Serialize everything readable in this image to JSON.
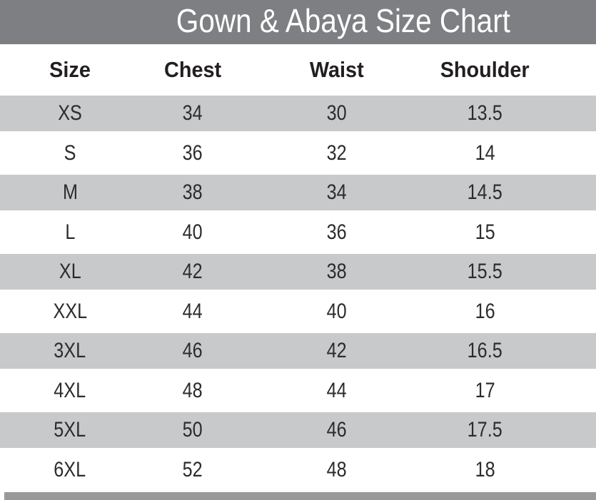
{
  "title_bar": {
    "title": "Gown & Abaya Size Chart"
  },
  "colors": {
    "title_bar_bg": "#7d7f82",
    "title_text": "#ffffff",
    "header_text": "#231f20",
    "row_stripe_bg": "#c8c9cb",
    "row_plain_bg": "#ffffff",
    "data_text": "#2c2c2e",
    "footer_bar_bg": "#97999b"
  },
  "chart_data": {
    "type": "table",
    "title": "Gown & Abaya Size Chart",
    "columns": [
      "Size",
      "Chest",
      "Waist",
      "Shoulder"
    ],
    "rows": [
      [
        "XS",
        "34",
        "30",
        "13.5"
      ],
      [
        "S",
        "36",
        "32",
        "14"
      ],
      [
        "M",
        "38",
        "34",
        "14.5"
      ],
      [
        "L",
        "40",
        "36",
        "15"
      ],
      [
        "XL",
        "42",
        "38",
        "15.5"
      ],
      [
        "XXL",
        "44",
        "40",
        "16"
      ],
      [
        "3XL",
        "46",
        "42",
        "16.5"
      ],
      [
        "4XL",
        "48",
        "44",
        "17"
      ],
      [
        "5XL",
        "50",
        "46",
        "17.5"
      ],
      [
        "6XL",
        "52",
        "48",
        "18"
      ]
    ]
  }
}
